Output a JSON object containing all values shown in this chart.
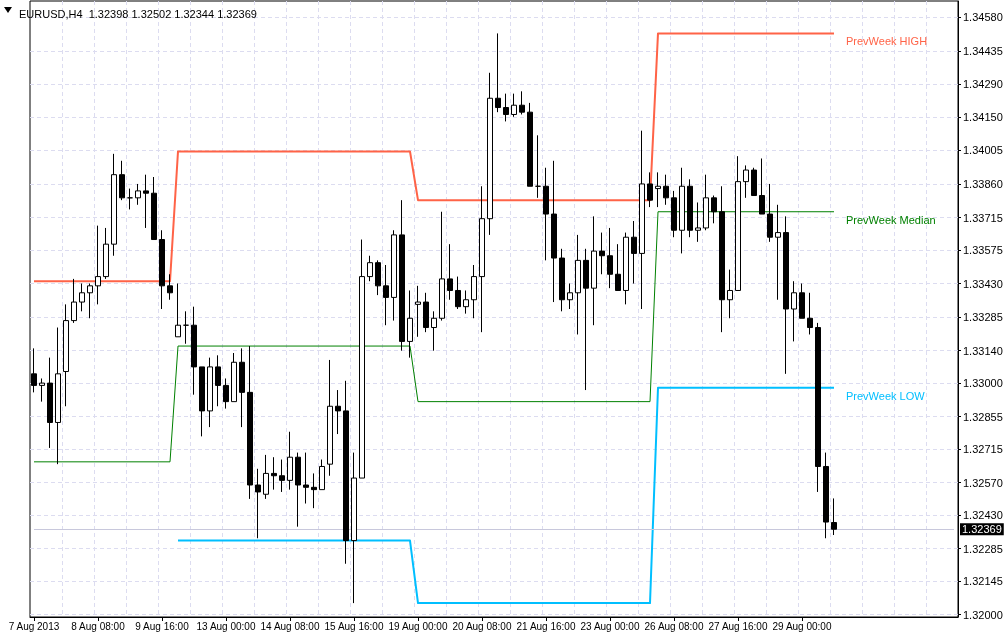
{
  "chart_data": {
    "type": "candlestick",
    "title": "EURUSD,H4  1.32398 1.32502 1.32344 1.32369",
    "color": "#000000",
    "categories": [
      "7 Aug 2013",
      null,
      null,
      null,
      null,
      null,
      null,
      null,
      "8 Aug 08:00",
      null,
      null,
      null,
      null,
      null,
      null,
      null,
      "9 Aug 16:00",
      null,
      null,
      null,
      null,
      null,
      null,
      null,
      "13 Aug 00:00",
      null,
      null,
      null,
      null,
      null,
      null,
      null,
      "14 Aug 08:00",
      null,
      null,
      null,
      null,
      null,
      null,
      null,
      "15 Aug 16:00",
      null,
      null,
      null,
      null,
      null,
      null,
      null,
      "19 Aug 00:00",
      null,
      null,
      null,
      null,
      null,
      null,
      null,
      "20 Aug 08:00",
      null,
      null,
      null,
      null,
      null,
      null,
      null,
      "21 Aug 16:00",
      null,
      null,
      null,
      null,
      null,
      null,
      null,
      "23 Aug 00:00",
      null,
      null,
      null,
      null,
      null,
      null,
      null,
      "26 Aug 08:00",
      null,
      null,
      null,
      null,
      null,
      null,
      null,
      "27 Aug 16:00",
      null,
      null,
      null,
      null,
      null,
      null,
      null,
      "29 Aug 00:00",
      null,
      null,
      null,
      null
    ],
    "ohlc": [
      [
        1.3304,
        1.3315,
        1.3296,
        1.3299
      ],
      [
        1.3299,
        1.3302,
        1.3292,
        1.33
      ],
      [
        1.33,
        1.3311,
        1.3272,
        1.3283
      ],
      [
        1.3283,
        1.3324,
        1.3265,
        1.3304
      ],
      [
        1.3305,
        1.3334,
        1.329,
        1.3327
      ],
      [
        1.3327,
        1.3345,
        1.3326,
        1.3335
      ],
      [
        1.3335,
        1.3343,
        1.3331,
        1.3339
      ],
      [
        1.3339,
        1.3343,
        1.3328,
        1.3342
      ],
      [
        1.3342,
        1.3368,
        1.3334,
        1.3346
      ],
      [
        1.3346,
        1.3367,
        1.3345,
        1.336
      ],
      [
        1.336,
        1.3399,
        1.3355,
        1.339
      ],
      [
        1.339,
        1.3396,
        1.3379,
        1.338
      ],
      [
        1.338,
        1.3384,
        1.3375,
        1.338
      ],
      [
        1.338,
        1.3386,
        1.3377,
        1.3383
      ],
      [
        1.3383,
        1.339,
        1.3367,
        1.3382
      ],
      [
        1.3382,
        1.3389,
        1.3362,
        1.3362
      ],
      [
        1.3362,
        1.3366,
        1.3332,
        1.3342
      ],
      [
        1.3342,
        1.3347,
        1.3336,
        1.3339
      ],
      [
        1.332,
        1.3343,
        1.332,
        1.3325
      ],
      [
        1.3325,
        1.3331,
        1.3317,
        1.3325
      ],
      [
        1.3325,
        1.3333,
        1.3295,
        1.3307
      ],
      [
        1.3307,
        1.3307,
        1.3277,
        1.3288
      ],
      [
        1.3288,
        1.3311,
        1.3281,
        1.3307
      ],
      [
        1.3307,
        1.3312,
        1.329,
        1.3299
      ],
      [
        1.3299,
        1.3302,
        1.3289,
        1.3292
      ],
      [
        1.3292,
        1.3313,
        1.3292,
        1.3309
      ],
      [
        1.3309,
        1.3315,
        1.3281,
        1.3296
      ],
      [
        1.3296,
        1.3316,
        1.325,
        1.3256
      ],
      [
        1.3256,
        1.3263,
        1.3233,
        1.3253
      ],
      [
        1.3252,
        1.3269,
        1.325,
        1.3261
      ],
      [
        1.3261,
        1.3268,
        1.3254,
        1.326
      ],
      [
        1.326,
        1.3267,
        1.3253,
        1.3258
      ],
      [
        1.3258,
        1.3279,
        1.3254,
        1.3268
      ],
      [
        1.3268,
        1.327,
        1.3238,
        1.3256
      ],
      [
        1.3256,
        1.327,
        1.3248,
        1.3255
      ],
      [
        1.3255,
        1.3261,
        1.3246,
        1.3254
      ],
      [
        1.3254,
        1.3267,
        1.3254,
        1.3264
      ],
      [
        1.3265,
        1.331,
        1.326,
        1.329
      ],
      [
        1.329,
        1.3297,
        1.3278,
        1.3288
      ],
      [
        1.3288,
        1.3301,
        1.3222,
        1.3232
      ],
      [
        1.3232,
        1.327,
        1.3205,
        1.3259
      ],
      [
        1.3259,
        1.3362,
        1.3259,
        1.3346
      ],
      [
        1.3346,
        1.3355,
        1.3344,
        1.3352
      ],
      [
        1.3352,
        1.3353,
        1.3338,
        1.3342
      ],
      [
        1.3342,
        1.3351,
        1.3325,
        1.3337
      ],
      [
        1.3337,
        1.3366,
        1.3327,
        1.3364
      ],
      [
        1.3364,
        1.3379,
        1.3314,
        1.3318
      ],
      [
        1.3318,
        1.334,
        1.3311,
        1.3328
      ],
      [
        1.3334,
        1.3342,
        1.332,
        1.3335
      ],
      [
        1.3335,
        1.3339,
        1.3322,
        1.3324
      ],
      [
        1.3324,
        1.3331,
        1.3314,
        1.3328
      ],
      [
        1.3328,
        1.3374,
        1.3327,
        1.3345
      ],
      [
        1.3345,
        1.336,
        1.3336,
        1.334
      ],
      [
        1.334,
        1.3346,
        1.3332,
        1.3333
      ],
      [
        1.3333,
        1.334,
        1.333,
        1.3336
      ],
      [
        1.3336,
        1.3351,
        1.3328,
        1.3346
      ],
      [
        1.3346,
        1.3385,
        1.3322,
        1.3371
      ],
      [
        1.3371,
        1.3434,
        1.3364,
        1.3423
      ],
      [
        1.3423,
        1.3451,
        1.3417,
        1.3419
      ],
      [
        1.3419,
        1.3425,
        1.3413,
        1.3416
      ],
      [
        1.3416,
        1.3425,
        1.3415,
        1.342
      ],
      [
        1.342,
        1.3426,
        1.3416,
        1.3417
      ],
      [
        1.3417,
        1.3421,
        1.3385,
        1.3385
      ],
      [
        1.3385,
        1.3407,
        1.338,
        1.3385
      ],
      [
        1.3385,
        1.3393,
        1.3353,
        1.3373
      ],
      [
        1.3373,
        1.3396,
        1.3335,
        1.3354
      ],
      [
        1.3354,
        1.3358,
        1.3331,
        1.3336
      ],
      [
        1.3336,
        1.3343,
        1.3332,
        1.3339
      ],
      [
        1.3339,
        1.3364,
        1.3321,
        1.3353
      ],
      [
        1.3353,
        1.3358,
        1.3297,
        1.3341
      ],
      [
        1.3341,
        1.3372,
        1.3325,
        1.3357
      ],
      [
        1.3357,
        1.3365,
        1.3347,
        1.3355
      ],
      [
        1.3355,
        1.3367,
        1.3341,
        1.3347
      ],
      [
        1.3347,
        1.336,
        1.334,
        1.334
      ],
      [
        1.334,
        1.3365,
        1.3334,
        1.3363
      ],
      [
        1.3363,
        1.337,
        1.3343,
        1.3356
      ],
      [
        1.3356,
        1.3409,
        1.3332,
        1.3386
      ],
      [
        1.3386,
        1.3391,
        1.3376,
        1.3379
      ],
      [
        1.3384,
        1.3391,
        1.3376,
        1.3385
      ],
      [
        1.3385,
        1.339,
        1.3377,
        1.338
      ],
      [
        1.338,
        1.3383,
        1.3363,
        1.3366
      ],
      [
        1.3366,
        1.3393,
        1.3356,
        1.3385
      ],
      [
        1.3385,
        1.3388,
        1.3363,
        1.3366
      ],
      [
        1.3366,
        1.3378,
        1.3361,
        1.3367
      ],
      [
        1.3367,
        1.339,
        1.3366,
        1.338
      ],
      [
        1.338,
        1.3381,
        1.3369,
        1.3374
      ],
      [
        1.3374,
        1.3385,
        1.3322,
        1.3336
      ],
      [
        1.3336,
        1.3349,
        1.3328,
        1.334
      ],
      [
        1.334,
        1.3398,
        1.334,
        1.3387
      ],
      [
        1.3387,
        1.3394,
        1.338,
        1.3392
      ],
      [
        1.3392,
        1.3393,
        1.3381,
        1.3381
      ],
      [
        1.3381,
        1.3397,
        1.3373,
        1.3373
      ],
      [
        1.3373,
        1.3386,
        1.3361,
        1.3363
      ],
      [
        1.3363,
        1.3377,
        1.3336,
        1.3365
      ],
      [
        1.3365,
        1.3372,
        1.3304,
        1.3332
      ],
      [
        1.3332,
        1.3344,
        1.3318,
        1.3339
      ],
      [
        1.3339,
        1.3343,
        1.3328,
        1.3328
      ],
      [
        1.3328,
        1.3339,
        1.3321,
        1.3324
      ],
      [
        1.3324,
        1.3326,
        1.3253,
        1.3264
      ],
      [
        1.3264,
        1.327,
        1.3233,
        1.324
      ],
      [
        1.32398,
        1.32502,
        1.32344,
        1.32369
      ]
    ],
    "series": [
      {
        "type": "line",
        "name": "PrevWeek HIGH",
        "color": "#ff6347",
        "values": [
          1.3344,
          1.3344,
          1.3344,
          1.3344,
          1.3344,
          1.3344,
          1.3344,
          1.3344,
          1.3344,
          1.3344,
          1.3344,
          1.3344,
          1.3344,
          1.3344,
          1.3344,
          1.3344,
          1.3344,
          1.3344,
          1.34,
          1.34,
          1.34,
          1.34,
          1.34,
          1.34,
          1.34,
          1.34,
          1.34,
          1.34,
          1.34,
          1.34,
          1.34,
          1.34,
          1.34,
          1.34,
          1.34,
          1.34,
          1.34,
          1.34,
          1.34,
          1.34,
          1.34,
          1.34,
          1.34,
          1.34,
          1.34,
          1.34,
          1.34,
          1.34,
          1.3379,
          1.3379,
          1.3379,
          1.3379,
          1.3379,
          1.3379,
          1.3379,
          1.3379,
          1.3379,
          1.3379,
          1.3379,
          1.3379,
          1.3379,
          1.3379,
          1.3379,
          1.3379,
          1.3379,
          1.3379,
          1.3379,
          1.3379,
          1.3379,
          1.3379,
          1.3379,
          1.3379,
          1.3379,
          1.3379,
          1.3379,
          1.3379,
          1.3379,
          1.3379,
          1.3451,
          1.3451,
          1.3451,
          1.3451,
          1.3451,
          1.3451,
          1.3451,
          1.3451,
          1.3451,
          1.3451,
          1.3451,
          1.3451,
          1.3451,
          1.3451,
          1.3451,
          1.3451,
          1.3451,
          1.3451,
          1.3451,
          1.3451,
          1.3451,
          1.3451,
          1.3451
        ]
      },
      {
        "type": "line",
        "name": "PrevWeek Median",
        "color": "#008000",
        "values": [
          1.3266,
          1.3266,
          1.3266,
          1.3266,
          1.3266,
          1.3266,
          1.3266,
          1.3266,
          1.3266,
          1.3266,
          1.3266,
          1.3266,
          1.3266,
          1.3266,
          1.3266,
          1.3266,
          1.3266,
          1.3266,
          1.3316,
          1.3316,
          1.3316,
          1.3316,
          1.3316,
          1.3316,
          1.3316,
          1.3316,
          1.3316,
          1.3316,
          1.3316,
          1.3316,
          1.3316,
          1.3316,
          1.3316,
          1.3316,
          1.3316,
          1.3316,
          1.3316,
          1.3316,
          1.3316,
          1.3316,
          1.3316,
          1.3316,
          1.3316,
          1.3316,
          1.3316,
          1.3316,
          1.3316,
          1.3316,
          1.3292,
          1.3292,
          1.3292,
          1.3292,
          1.3292,
          1.3292,
          1.3292,
          1.3292,
          1.3292,
          1.3292,
          1.3292,
          1.3292,
          1.3292,
          1.3292,
          1.3292,
          1.3292,
          1.3292,
          1.3292,
          1.3292,
          1.3292,
          1.3292,
          1.3292,
          1.3292,
          1.3292,
          1.3292,
          1.3292,
          1.3292,
          1.3292,
          1.3292,
          1.3292,
          1.3374,
          1.3374,
          1.3374,
          1.3374,
          1.3374,
          1.3374,
          1.3374,
          1.3374,
          1.3374,
          1.3374,
          1.3374,
          1.3374,
          1.3374,
          1.3374,
          1.3374,
          1.3374,
          1.3374,
          1.3374,
          1.3374,
          1.3374,
          1.3374,
          1.3374,
          1.3374
        ]
      },
      {
        "type": "line",
        "name": "PrevWeek LOW",
        "color": "#00bfff",
        "values": [
          null,
          null,
          null,
          null,
          null,
          null,
          null,
          null,
          null,
          null,
          null,
          null,
          null,
          null,
          null,
          null,
          null,
          null,
          1.3232,
          1.3232,
          1.3232,
          1.3232,
          1.3232,
          1.3232,
          1.3232,
          1.3232,
          1.3232,
          1.3232,
          1.3232,
          1.3232,
          1.3232,
          1.3232,
          1.3232,
          1.3232,
          1.3232,
          1.3232,
          1.3232,
          1.3232,
          1.3232,
          1.3232,
          1.3232,
          1.3232,
          1.3232,
          1.3232,
          1.3232,
          1.3232,
          1.3232,
          1.3232,
          1.3205,
          1.3205,
          1.3205,
          1.3205,
          1.3205,
          1.3205,
          1.3205,
          1.3205,
          1.3205,
          1.3205,
          1.3205,
          1.3205,
          1.3205,
          1.3205,
          1.3205,
          1.3205,
          1.3205,
          1.3205,
          1.3205,
          1.3205,
          1.3205,
          1.3205,
          1.3205,
          1.3205,
          1.3205,
          1.3205,
          1.3205,
          1.3205,
          1.3205,
          1.3205,
          1.3298,
          1.3298,
          1.3298,
          1.3298,
          1.3298,
          1.3298,
          1.3298,
          1.3298,
          1.3298,
          1.3298,
          1.3298,
          1.3298,
          1.3298,
          1.3298,
          1.3298,
          1.3298,
          1.3298,
          1.3298,
          1.3298,
          1.3298,
          1.3298,
          1.3298,
          1.3298
        ]
      }
    ],
    "ref_lines": [
      {
        "axis": "y",
        "value": 1.32369,
        "label": "1.32369",
        "color": "#c8c8dc"
      }
    ],
    "ylim": [
      1.3199,
      1.3465
    ],
    "yticks": [
      {
        "value": 1.32,
        "label": "1.32000"
      },
      1.32145,
      1.32285,
      {
        "value": 1.3243,
        "label": "1.32430"
      },
      {
        "value": 1.3257,
        "label": "1.32570"
      },
      1.32715,
      1.32855,
      {
        "value": 1.33,
        "label": "1.33000"
      },
      {
        "value": 1.3314,
        "label": "1.33140"
      },
      1.33285,
      {
        "value": 1.3343,
        "label": "1.33430"
      },
      1.33575,
      1.33715,
      {
        "value": 1.3386,
        "label": "1.33860"
      },
      1.34005,
      {
        "value": 1.3415,
        "label": "1.34150"
      },
      {
        "value": 1.3429,
        "label": "1.34290"
      },
      1.34435,
      {
        "value": 1.3458,
        "label": "1.34580"
      }
    ],
    "grid": true,
    "legend": false
  }
}
